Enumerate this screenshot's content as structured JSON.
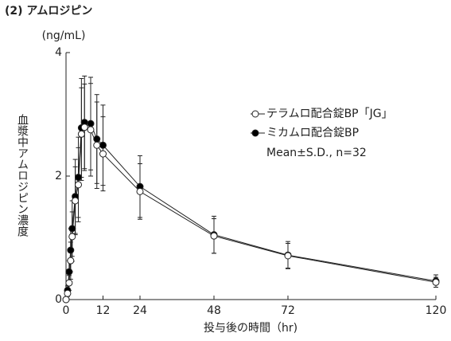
{
  "chart_data": {
    "type": "line",
    "title": "(2) アムロジピン",
    "y_unit": "(ng/mL)",
    "y_label": "血漿中アムロジピン濃度",
    "x_label": "投与後の時間（hr)",
    "annotation": "Mean±S.D., n=32",
    "x": [
      0,
      0.5,
      1,
      1.5,
      2,
      3,
      4,
      5,
      6,
      8,
      10,
      12,
      24,
      48,
      72,
      120
    ],
    "series": [
      {
        "name": "テラムロ配合錠BP「JG」",
        "color": "#ffffff",
        "values": [
          0,
          0.1,
          0.27,
          0.63,
          1.02,
          1.6,
          1.86,
          2.68,
          2.79,
          2.75,
          2.5,
          2.36,
          1.75,
          1.03,
          0.71,
          0.28
        ],
        "errors": [
          0,
          0.05,
          0.12,
          0.3,
          0.4,
          0.55,
          0.6,
          0.75,
          0.7,
          0.75,
          0.7,
          0.6,
          0.45,
          0.28,
          0.2,
          0.08
        ]
      },
      {
        "name": "ミカムロ配合錠BP",
        "color": "#000000",
        "values": [
          0,
          0.15,
          0.45,
          0.8,
          1.15,
          1.67,
          1.98,
          2.78,
          2.87,
          2.85,
          2.6,
          2.5,
          1.83,
          1.05,
          0.72,
          0.3
        ],
        "errors": [
          0,
          0.07,
          0.18,
          0.35,
          0.45,
          0.6,
          0.65,
          0.8,
          0.75,
          0.75,
          0.72,
          0.65,
          0.5,
          0.3,
          0.22,
          0.1
        ]
      }
    ],
    "xlim": [
      0,
      120
    ],
    "xticks": [
      0,
      12,
      24,
      48,
      72,
      120
    ],
    "ylim": [
      0,
      4
    ],
    "yticks": [
      0,
      2,
      4
    ]
  }
}
